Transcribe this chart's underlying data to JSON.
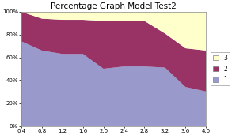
{
  "title": "Percentage Graph Model Test2",
  "x": [
    0.4,
    0.8,
    1.2,
    1.6,
    2.0,
    2.4,
    2.8,
    3.2,
    3.6,
    4.0
  ],
  "s1": [
    0.74,
    0.66,
    0.63,
    0.63,
    0.5,
    0.52,
    0.52,
    0.51,
    0.34,
    0.3
  ],
  "s2": [
    0.26,
    0.28,
    0.3,
    0.3,
    0.42,
    0.4,
    0.4,
    0.3,
    0.34,
    0.36
  ],
  "s3": [
    0.0,
    0.06,
    0.07,
    0.07,
    0.08,
    0.08,
    0.08,
    0.19,
    0.32,
    0.34
  ],
  "color1": "#9999cc",
  "color2": "#993366",
  "color3": "#ffffcc",
  "ylim": [
    0,
    1
  ],
  "yticks": [
    0,
    0.2,
    0.4,
    0.6,
    0.8,
    1.0
  ],
  "ytick_labels": [
    "0%",
    "20%",
    "40%",
    "60%",
    "80%",
    "100%"
  ],
  "background_color": "#ffffff",
  "plot_bg": "#dce6f0"
}
